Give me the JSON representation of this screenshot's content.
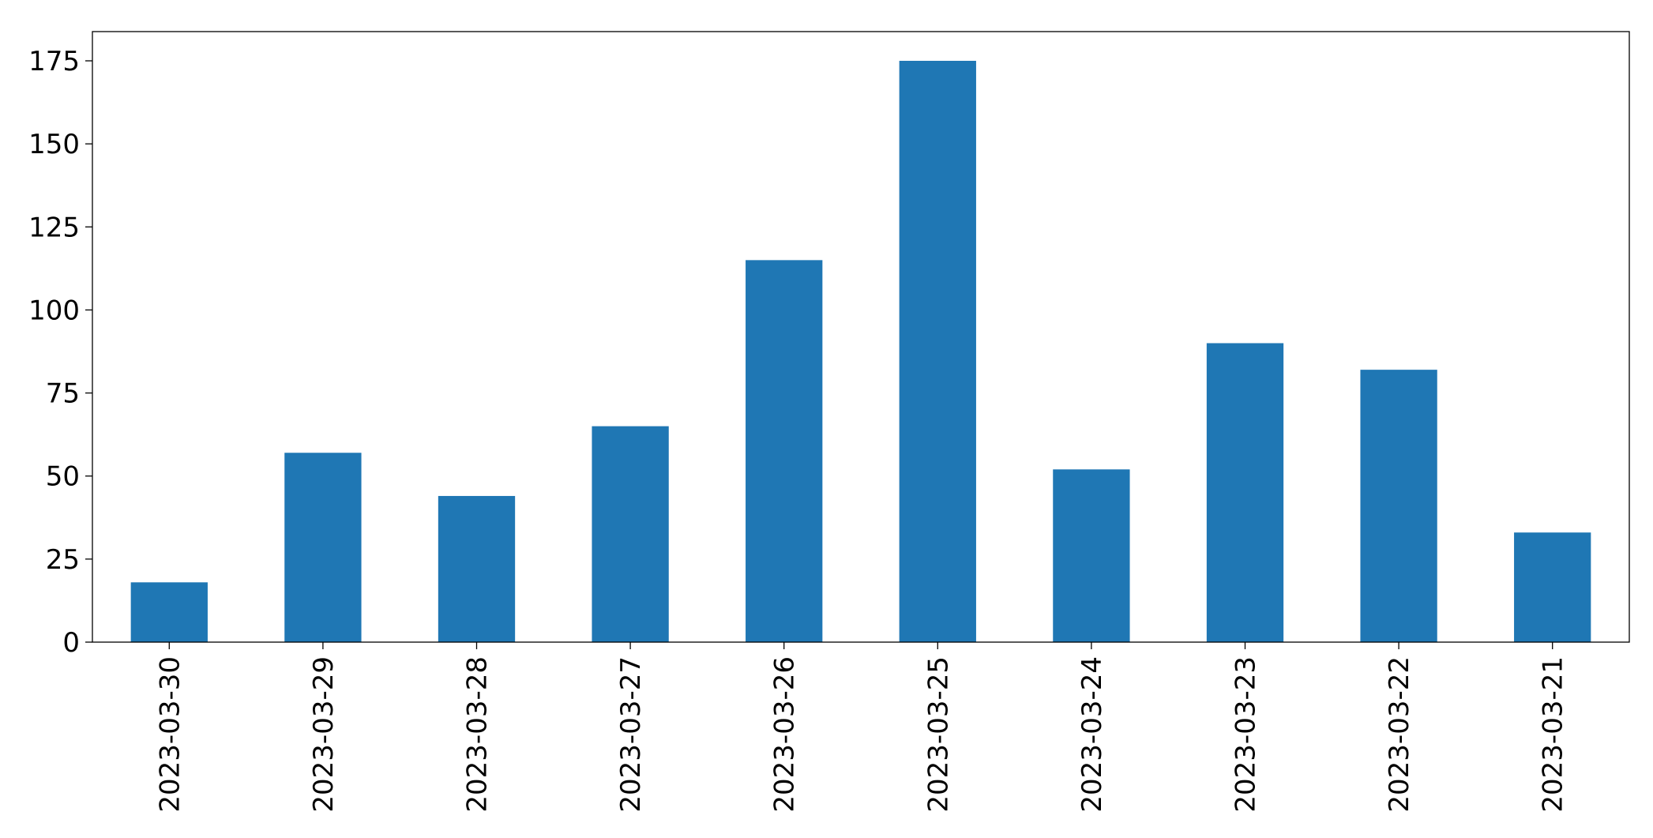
{
  "chart_data": {
    "type": "bar",
    "categories": [
      "2023-03-30",
      "2023-03-29",
      "2023-03-28",
      "2023-03-27",
      "2023-03-26",
      "2023-03-25",
      "2023-03-24",
      "2023-03-23",
      "2023-03-22",
      "2023-03-21"
    ],
    "values": [
      18,
      57,
      44,
      65,
      115,
      175,
      52,
      90,
      82,
      33
    ],
    "color": "#1f77b4",
    "ylim": [
      0,
      183.8
    ],
    "yticks": [
      0,
      25,
      50,
      75,
      100,
      125,
      150,
      175
    ],
    "grid": false
  }
}
